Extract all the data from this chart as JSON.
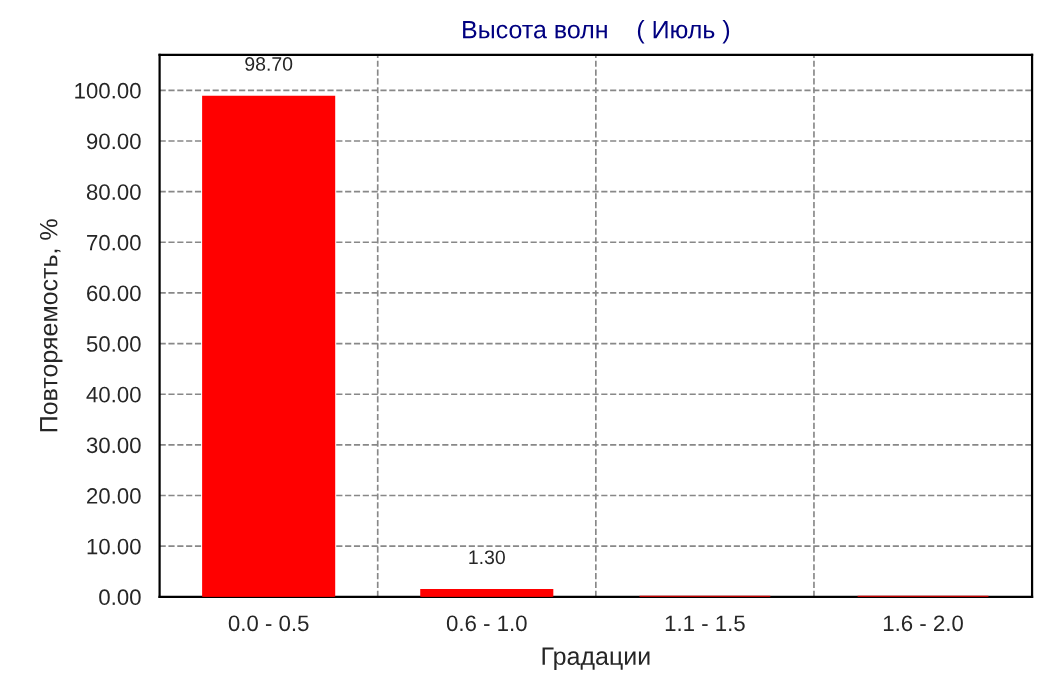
{
  "chart_data": {
    "type": "bar",
    "title": "Высота волн    ( Июль )",
    "xlabel": "Градации",
    "ylabel": "Повторяемость, %",
    "categories": [
      "0.0 - 0.5",
      "0.6 - 1.0",
      "1.1 - 1.5",
      "1.6 - 2.0"
    ],
    "values": [
      98.7,
      1.3,
      0,
      0
    ],
    "color": "#ff0000",
    "value_labels": [
      "98.70",
      "1.30",
      null,
      null
    ],
    "ylim": [
      0,
      107
    ],
    "yticks": [
      {
        "value": 0,
        "label": "0.00"
      },
      {
        "value": 10,
        "label": "10.00"
      },
      {
        "value": 20,
        "label": "20.00"
      },
      {
        "value": 30,
        "label": "30.00"
      },
      {
        "value": 40,
        "label": "40.00"
      },
      {
        "value": 50,
        "label": "50.00"
      },
      {
        "value": 60,
        "label": "60.00"
      },
      {
        "value": 70,
        "label": "70.00"
      },
      {
        "value": 80,
        "label": "80.00"
      },
      {
        "value": 90,
        "label": "90.00"
      },
      {
        "value": 100,
        "label": "100.00"
      }
    ],
    "grid": true
  }
}
